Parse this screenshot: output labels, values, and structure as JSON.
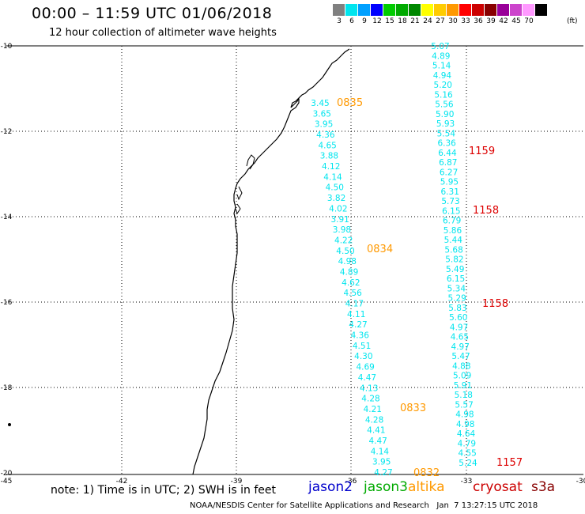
{
  "header": {
    "title": "00:00 – 11:59 UTC 01/06/2018",
    "subtitle": "12 hour collection of altimeter wave heights"
  },
  "color_scale": {
    "unit": "(ft)",
    "swatches": [
      {
        "label": "3",
        "color": "#808080"
      },
      {
        "label": "6",
        "color": "#00e5ee"
      },
      {
        "label": "9",
        "color": "#00a0ff"
      },
      {
        "label": "12",
        "color": "#0000ff"
      },
      {
        "label": "15",
        "color": "#00cc00"
      },
      {
        "label": "18",
        "color": "#00aa00"
      },
      {
        "label": "21",
        "color": "#008800"
      },
      {
        "label": "24",
        "color": "#ffff00"
      },
      {
        "label": "27",
        "color": "#ffcc00"
      },
      {
        "label": "30",
        "color": "#ff9900"
      },
      {
        "label": "33",
        "color": "#ff0000"
      },
      {
        "label": "36",
        "color": "#cc0000"
      },
      {
        "label": "39",
        "color": "#880000"
      },
      {
        "label": "42",
        "color": "#990099"
      },
      {
        "label": "45",
        "color": "#cc44cc"
      },
      {
        "label": "70",
        "color": "#ff99ff"
      },
      {
        "label": "",
        "color": "#000000"
      }
    ]
  },
  "axes": {
    "lat_labels": [
      "-10",
      "-12",
      "-14",
      "-16",
      "-18",
      "-20"
    ],
    "lon_labels": [
      "-45",
      "-42",
      "-39",
      "-36",
      "-33",
      "-30"
    ]
  },
  "tracks": {
    "west": {
      "color": "#00e5ee",
      "values": [
        "3.45",
        "3.65",
        "3.95",
        "4.36",
        "4.65",
        "3.88",
        "4.12",
        "4.14",
        "4.50",
        "3.82",
        "4.02",
        "3.91",
        "3.98",
        "4.22",
        "4.50",
        "4.98",
        "4.89",
        "4.62",
        "4.56",
        "4.17",
        "4.11",
        "4.27",
        "4.36",
        "4.51",
        "4.30",
        "4.69",
        "4.47",
        "4.13",
        "4.28",
        "4.21",
        "4.28",
        "4.41",
        "4.47",
        "4.14",
        "3.95",
        "4.27"
      ]
    },
    "east": {
      "color": "#00e5ee",
      "values": [
        "5.07",
        "4.89",
        "5.14",
        "4.94",
        "5.20",
        "5.16",
        "5.56",
        "5.90",
        "5.93",
        "5.54",
        "6.36",
        "6.44",
        "6.87",
        "6.27",
        "5.95",
        "6.31",
        "5.73",
        "6.15",
        "6.79",
        "5.86",
        "5.44",
        "5.68",
        "5.82",
        "5.49",
        "6.15",
        "5.34",
        "5.29",
        "5.83",
        "5.60",
        "4.97",
        "4.65",
        "4.97",
        "5.47",
        "4.88",
        "5.09",
        "5.91",
        "5.18",
        "5.57",
        "4.98",
        "4.98",
        "4.64",
        "4.79",
        "4.55",
        "5.24"
      ]
    }
  },
  "times": [
    {
      "text": "0835",
      "color": "#ff9900"
    },
    {
      "text": "0834",
      "color": "#ff9900"
    },
    {
      "text": "0833",
      "color": "#ff9900"
    },
    {
      "text": "0832",
      "color": "#ff9900"
    },
    {
      "text": "1159",
      "color": "#dd0000"
    },
    {
      "text": "1158",
      "color": "#dd0000"
    },
    {
      "text": "1158",
      "color": "#dd0000"
    },
    {
      "text": "1157",
      "color": "#dd0000"
    }
  ],
  "footer": {
    "note": "note: 1) Time is in UTC; 2) SWH is in feet",
    "legend": [
      {
        "text": "jason2",
        "color": "#0000cc"
      },
      {
        "text": "jason3",
        "color": "#00aa00"
      },
      {
        "text": "altika",
        "color": "#ff9900"
      },
      {
        "text": "cryosat",
        "color": "#cc0000"
      },
      {
        "text": "s3a",
        "color": "#880000"
      }
    ],
    "credit": "NOAA/NESDIS Center for Satellite Applications and Research   Jan  7 13:27:15 UTC 2018"
  }
}
